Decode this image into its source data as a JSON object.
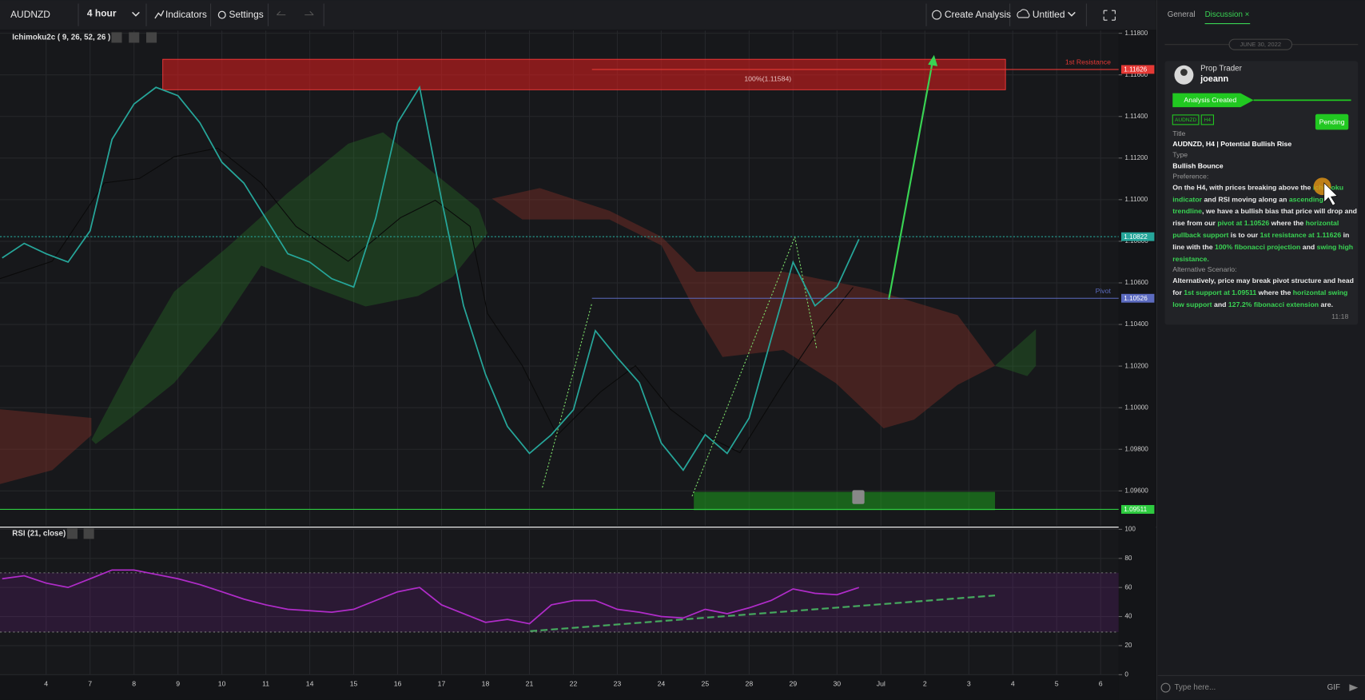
{
  "toolbar": {
    "symbol": "AUDNZD",
    "interval": "4 hour",
    "indicators": "Indicators",
    "settings": "Settings",
    "create": "Create Analysis",
    "layout": "Untitled"
  },
  "chart_data": [
    {
      "type": "line",
      "title": "Ichimoku2c ( 9, 26, 52, 26 )",
      "xlim": [
        -1.05,
        24.41
      ],
      "x": [
        -1,
        -0.5,
        0,
        0.5,
        1,
        1.5,
        2,
        2.5,
        3,
        3.5,
        4,
        4.5,
        5,
        5.5,
        6,
        6.5,
        7,
        7.5,
        8,
        8.5,
        9,
        9.5,
        10,
        10.5,
        11,
        11.5,
        12,
        12.5,
        13,
        13.5,
        14,
        14.5,
        15,
        15.5,
        16,
        16.5,
        17,
        17.5,
        18,
        18.5
      ],
      "series": [
        {
          "color": "#26a69a",
          "values": [
            1.1072,
            1.1079,
            1.1074,
            1.107,
            1.1085,
            1.1129,
            1.1146,
            1.1154,
            1.115,
            1.1137,
            1.1118,
            1.1108,
            1.1091,
            1.1074,
            1.107,
            1.1062,
            1.1058,
            1.1091,
            1.1137,
            1.1154,
            1.11,
            1.1049,
            1.1016,
            1.0991,
            1.0978,
            1.0987,
            1.0999,
            1.1037,
            1.1024,
            1.1012,
            1.0983,
            1.097,
            1.0987,
            1.0978,
            1.0995,
            1.1033,
            1.107,
            1.1049,
            1.1058,
            1.1081
          ]
        }
      ],
      "ylim": [
        1.09432,
        1.11813
      ],
      "yticks": [
        {
          "value": 1.118,
          "label": "1.11800"
        },
        {
          "value": 1.116,
          "label": "1.11600"
        },
        {
          "value": 1.114,
          "label": "1.11400"
        },
        {
          "value": 1.112,
          "label": "1.11200"
        },
        {
          "value": 1.11,
          "label": "1.11000"
        },
        {
          "value": 1.108,
          "label": "1.10800"
        },
        {
          "value": 1.106,
          "label": "1.10600"
        },
        {
          "value": 1.104,
          "label": "1.10400"
        },
        {
          "value": 1.102,
          "label": "1.10200"
        },
        {
          "value": 1.1,
          "label": "1.10000"
        },
        {
          "value": 1.098,
          "label": "1.09800"
        },
        {
          "value": 1.096,
          "label": "1.09600"
        }
      ],
      "levels": [
        {
          "value": 1.11626,
          "label": "1st Resistance",
          "color": "#e53935"
        },
        {
          "value": 1.10822,
          "color": "#26a69a"
        },
        {
          "value": 1.10526,
          "label": "Pivot",
          "color": "#5c6bc0"
        },
        {
          "value": 1.09511,
          "color": "#2ecc40"
        }
      ],
      "fib_label": "100%(1.11584)",
      "grid": true
    },
    {
      "type": "line",
      "title": "RSI (21, close)",
      "xlim": [
        -1.05,
        24.41
      ],
      "categories": [
        "4",
        "7",
        "8",
        "9",
        "10",
        "11",
        "14",
        "15",
        "16",
        "17",
        "18",
        "21",
        "22",
        "23",
        "24",
        "25",
        "28",
        "29",
        "30",
        "Jul",
        "2",
        "3",
        "4",
        "5",
        "6"
      ],
      "x": [
        -1,
        -0.5,
        0,
        0.5,
        1,
        1.5,
        2,
        2.5,
        3,
        3.5,
        4,
        4.5,
        5,
        5.5,
        6,
        6.5,
        7,
        7.5,
        8,
        8.5,
        9,
        9.5,
        10,
        10.5,
        11,
        11.5,
        12,
        12.5,
        13,
        13.5,
        14,
        14.5,
        15,
        15.5,
        16,
        16.5,
        17,
        17.5,
        18,
        18.5
      ],
      "series": [
        {
          "color": "#b02cc9",
          "values": [
            66,
            68,
            63,
            60,
            66,
            72,
            72,
            69,
            66,
            62,
            57,
            52,
            48,
            45,
            44,
            43,
            45,
            51,
            57,
            60,
            48,
            42,
            36,
            38,
            35,
            48,
            51,
            51,
            45,
            43,
            40,
            39,
            45,
            42,
            46,
            51,
            59,
            56,
            55,
            60
          ]
        }
      ],
      "ylim": [
        0,
        100
      ],
      "yticks": [
        0,
        20,
        40,
        60,
        80,
        100
      ],
      "grid": true
    }
  ],
  "panel": {
    "tabs": [
      "General",
      "Discussion"
    ],
    "date": "JUNE 30, 2022",
    "role": "Prop Trader",
    "user": "joeann",
    "status": "Analysis Created",
    "tags": [
      "AUDNZD",
      "H4"
    ],
    "badge": "Pending",
    "fields": [
      {
        "label": "Title",
        "value": "AUDNZD, H4 | Potential Bullish Rise"
      },
      {
        "label": "Type",
        "value": "Bullish Bounce"
      }
    ],
    "preference_label": "Preference:",
    "preference": [
      [
        {
          "text": "On the H4, with prices breaking above the "
        },
        {
          "text": "ichimoku",
          "green": true
        }
      ],
      [
        {
          "text": "indicator",
          "green": true
        },
        {
          "text": " and RSI moving along an "
        },
        {
          "text": "ascending",
          "green": true
        }
      ],
      [
        {
          "text": "trendline",
          "green": true
        },
        {
          "text": ", we have a bullish bias that price will drop and"
        }
      ],
      [
        {
          "text": "rise from our "
        },
        {
          "text": "pivot at 1.10526",
          "green": true
        },
        {
          "text": " where the "
        },
        {
          "text": "horizontal",
          "green": true
        }
      ],
      [
        {
          "text": "pullback support",
          "green": true
        },
        {
          "text": " is to our "
        },
        {
          "text": "1st resistance at 1.11626",
          "green": true
        },
        {
          "text": " in"
        }
      ],
      [
        {
          "text": "line with the "
        },
        {
          "text": "100% fibonacci projection",
          "green": true
        },
        {
          "text": " and "
        },
        {
          "text": "swing high",
          "green": true
        }
      ],
      [
        {
          "text": "resistance.",
          "green": true
        }
      ]
    ],
    "alternative_label": "Alternative Scenario:",
    "alternative": [
      [
        {
          "text": "Alternatively, price may break pivot structure and head"
        }
      ],
      [
        {
          "text": "for "
        },
        {
          "text": "1st support at 1.09511",
          "green": true
        },
        {
          "text": " where the "
        },
        {
          "text": "horizontal swing",
          "green": true
        }
      ],
      [
        {
          "text": "low support",
          "green": true
        },
        {
          "text": " and "
        },
        {
          "text": "127.2% fibonacci extension",
          "green": true
        },
        {
          "text": " are."
        }
      ]
    ],
    "time": "11:18",
    "input": "Type here...",
    "gif": "GIF"
  }
}
